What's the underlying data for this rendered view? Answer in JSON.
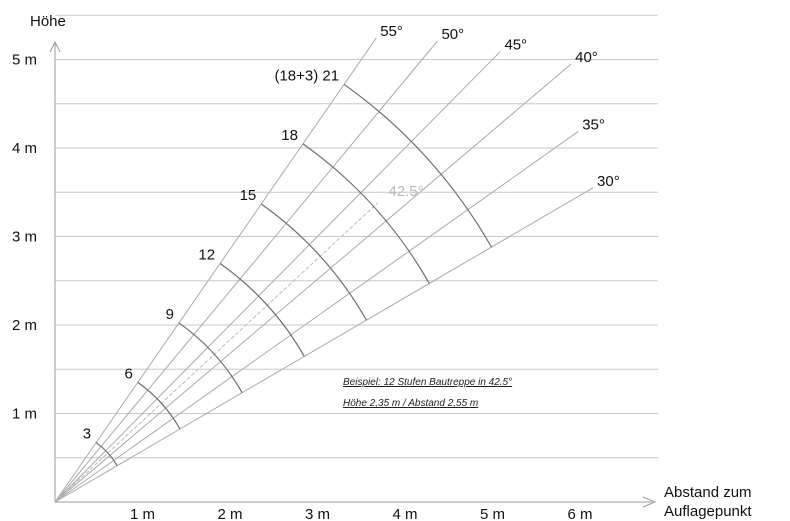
{
  "chart_data": {
    "type": "line",
    "title": "",
    "xlabel": [
      "Abstand zum",
      "Auflagepunkt"
    ],
    "ylabel": "Höhe",
    "xlim": [
      0,
      7
    ],
    "ylim": [
      0,
      5.5
    ],
    "x_ticks": [
      {
        "value": 1,
        "label": "1 m"
      },
      {
        "value": 2,
        "label": "2 m"
      },
      {
        "value": 3,
        "label": "3 m"
      },
      {
        "value": 4,
        "label": "4 m"
      },
      {
        "value": 5,
        "label": "5 m"
      },
      {
        "value": 6,
        "label": "6 m"
      }
    ],
    "y_ticks": [
      {
        "value": 1,
        "label": "1 m"
      },
      {
        "value": 2,
        "label": "2 m"
      },
      {
        "value": 3,
        "label": "3 m"
      },
      {
        "value": 4,
        "label": "4 m"
      },
      {
        "value": 5,
        "label": "5 m"
      }
    ],
    "y_gridlines": [
      0.5,
      1,
      1.5,
      2,
      2.5,
      3,
      3.5,
      4,
      4.5,
      5,
      5.5
    ],
    "grid": true,
    "angle_lines": [
      {
        "angle": 30,
        "label": "30°",
        "length": 7.1
      },
      {
        "angle": 35,
        "label": "35°",
        "length": 7.3
      },
      {
        "angle": 40,
        "label": "40°",
        "length": 7.7
      },
      {
        "angle": 45,
        "label": "45°",
        "length": 7.2
      },
      {
        "angle": 50,
        "label": "50°",
        "length": 6.8
      },
      {
        "angle": 55,
        "label": "55°",
        "length": 6.4
      }
    ],
    "highlight_angle": {
      "angle": 42.5,
      "label": "42.5°",
      "color": "#bbbbbb"
    },
    "step_arcs": [
      {
        "steps": 3,
        "label": "3",
        "radius": 0.82
      },
      {
        "steps": 6,
        "label": "6",
        "radius": 1.65
      },
      {
        "steps": 9,
        "label": "9",
        "radius": 2.47
      },
      {
        "steps": 12,
        "label": "12",
        "radius": 3.29
      },
      {
        "steps": 15,
        "label": "15",
        "radius": 4.11
      },
      {
        "steps": 18,
        "label": "18",
        "radius": 4.94
      },
      {
        "steps": 21,
        "label": "(18+3) 21",
        "radius": 5.76
      }
    ],
    "annotations": [
      "Beispiel: 12 Stufen Bautreppe in 42.5°",
      "Höhe 2,35 m / Abstand 2,55 m"
    ],
    "colors": {
      "grid": "#c8c8c8",
      "angle_line": "#aaaaaa",
      "arc": "#6e6e6e",
      "text": "#111111"
    }
  }
}
